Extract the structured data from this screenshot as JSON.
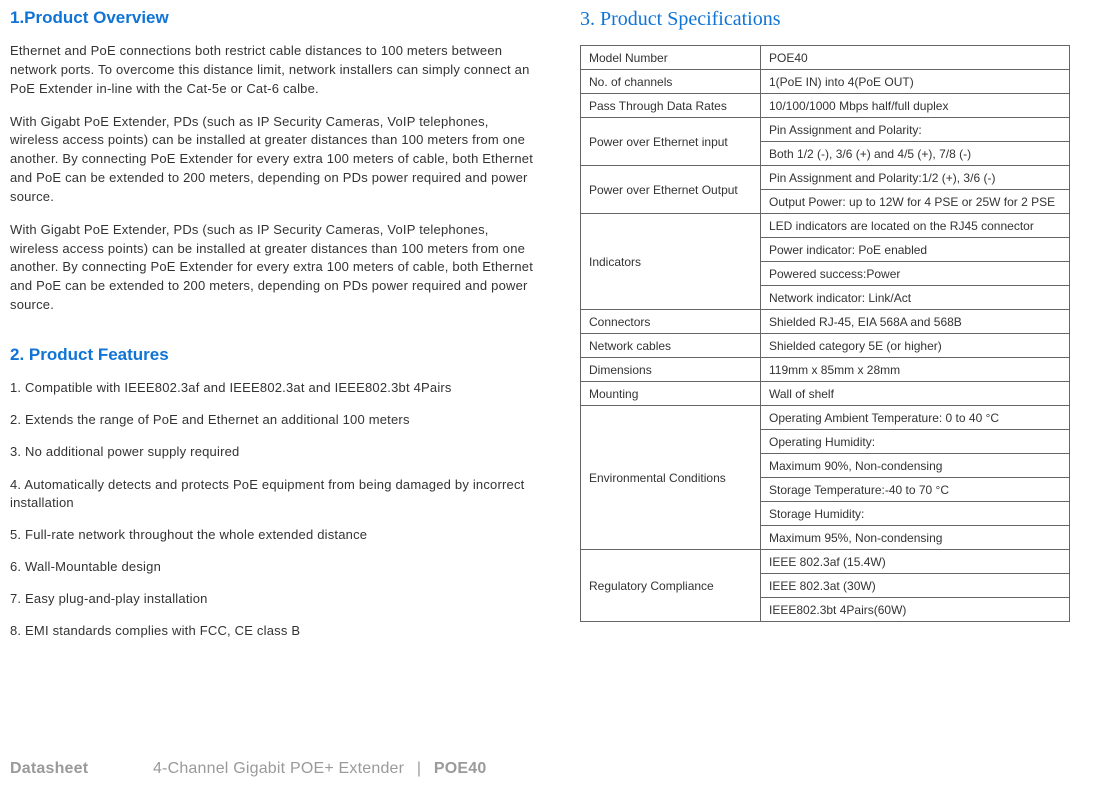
{
  "overview": {
    "heading": "1.Product Overview",
    "paragraphs": [
      "Ethernet and PoE connections both restrict cable distances to 100 meters between network ports. To overcome this distance limit, network installers can simply connect an PoE Extender in-line with the Cat-5e or Cat-6 calbe.",
      "With Gigabt PoE Extender, PDs (such as IP Security Cameras, VoIP telephones, wireless access points) can be installed at greater distances than 100 meters from one another. By connecting PoE Extender for every extra 100 meters of cable, both Ethernet and PoE can be extended to 200 meters, depending on PDs power required and power source.",
      "With Gigabt PoE Extender, PDs (such as IP Security Cameras, VoIP telephones, wireless access points) can be installed at greater distances than 100 meters from one another. By connecting PoE Extender for every extra 100 meters of cable, both Ethernet and PoE can be extended to 200 meters, depending on PDs power required and power source."
    ]
  },
  "features": {
    "heading": "2. Product Features",
    "items": [
      "1. Compatible with IEEE802.3af and IEEE802.3at and IEEE802.3bt 4Pairs",
      "2. Extends the range of PoE and Ethernet an additional 100 meters",
      "3. No additional power supply required",
      "4. Automatically detects and protects PoE equipment from being damaged by incorrect installation",
      "5. Full-rate network throughout the whole extended distance",
      "6. Wall-Mountable design",
      "7. Easy plug-and-play installation",
      "8. EMI standards complies with FCC, CE class B"
    ]
  },
  "specs": {
    "heading": "3. Product Specifications",
    "rows": [
      {
        "label": "Model Number",
        "values": [
          "POE40"
        ]
      },
      {
        "label": "No. of channels",
        "values": [
          "1(PoE IN) into 4(PoE OUT)"
        ]
      },
      {
        "label": "Pass Through Data Rates",
        "values": [
          "10/100/1000 Mbps half/full duplex"
        ]
      },
      {
        "label": "Power over Ethernet input",
        "values": [
          "Pin Assignment and Polarity:",
          "Both 1/2 (-), 3/6 (+) and 4/5 (+), 7/8 (-)"
        ]
      },
      {
        "label": "Power over Ethernet Output",
        "values": [
          "Pin Assignment and Polarity:1/2 (+), 3/6 (-)",
          "Output Power: up to 12W for 4 PSE or 25W for 2 PSE"
        ]
      },
      {
        "label": "Indicators",
        "values": [
          "  LED indicators are located on the RJ45 connector",
          "Power indicator: PoE enabled",
          "Powered success:Power",
          "Network indicator: Link/Act"
        ]
      },
      {
        "label": "Connectors",
        "values": [
          "Shielded RJ-45, EIA 568A and 568B"
        ]
      },
      {
        "label": "Network cables",
        "values": [
          "Shielded category 5E (or higher)"
        ]
      },
      {
        "label": "Dimensions",
        "values": [
          "119mm x 85mm x 28mm"
        ]
      },
      {
        "label": "Mounting",
        "values": [
          "Wall of shelf"
        ]
      },
      {
        "label": "Environmental Conditions",
        "values": [
          "Operating Ambient Temperature: 0 to 40 °C",
          "Operating Humidity:",
          "Maximum 90%, Non-condensing",
          "Storage Temperature:-40 to 70 °C",
          "Storage Humidity:",
          "Maximum 95%, Non-condensing"
        ]
      },
      {
        "label": "Regulatory Compliance",
        "values": [
          "IEEE 802.3af (15.4W)",
          "IEEE 802.3at (30W)",
          "IEEE802.3bt 4Pairs(60W)"
        ]
      }
    ]
  },
  "footer": {
    "datasheet": "Datasheet",
    "title": "4-Channel Gigabit POE+ Extender",
    "separator": "|",
    "model": "POE40"
  },
  "style": {
    "heading_color": "#1074d6",
    "text_color": "#333333",
    "border_color": "#666666",
    "footer_color": "#9a9a9a",
    "background_color": "#ffffff",
    "body_fontsize": 13,
    "table_fontsize": 12,
    "heading_fontsize": 17,
    "serif_heading_fontsize": 20
  }
}
